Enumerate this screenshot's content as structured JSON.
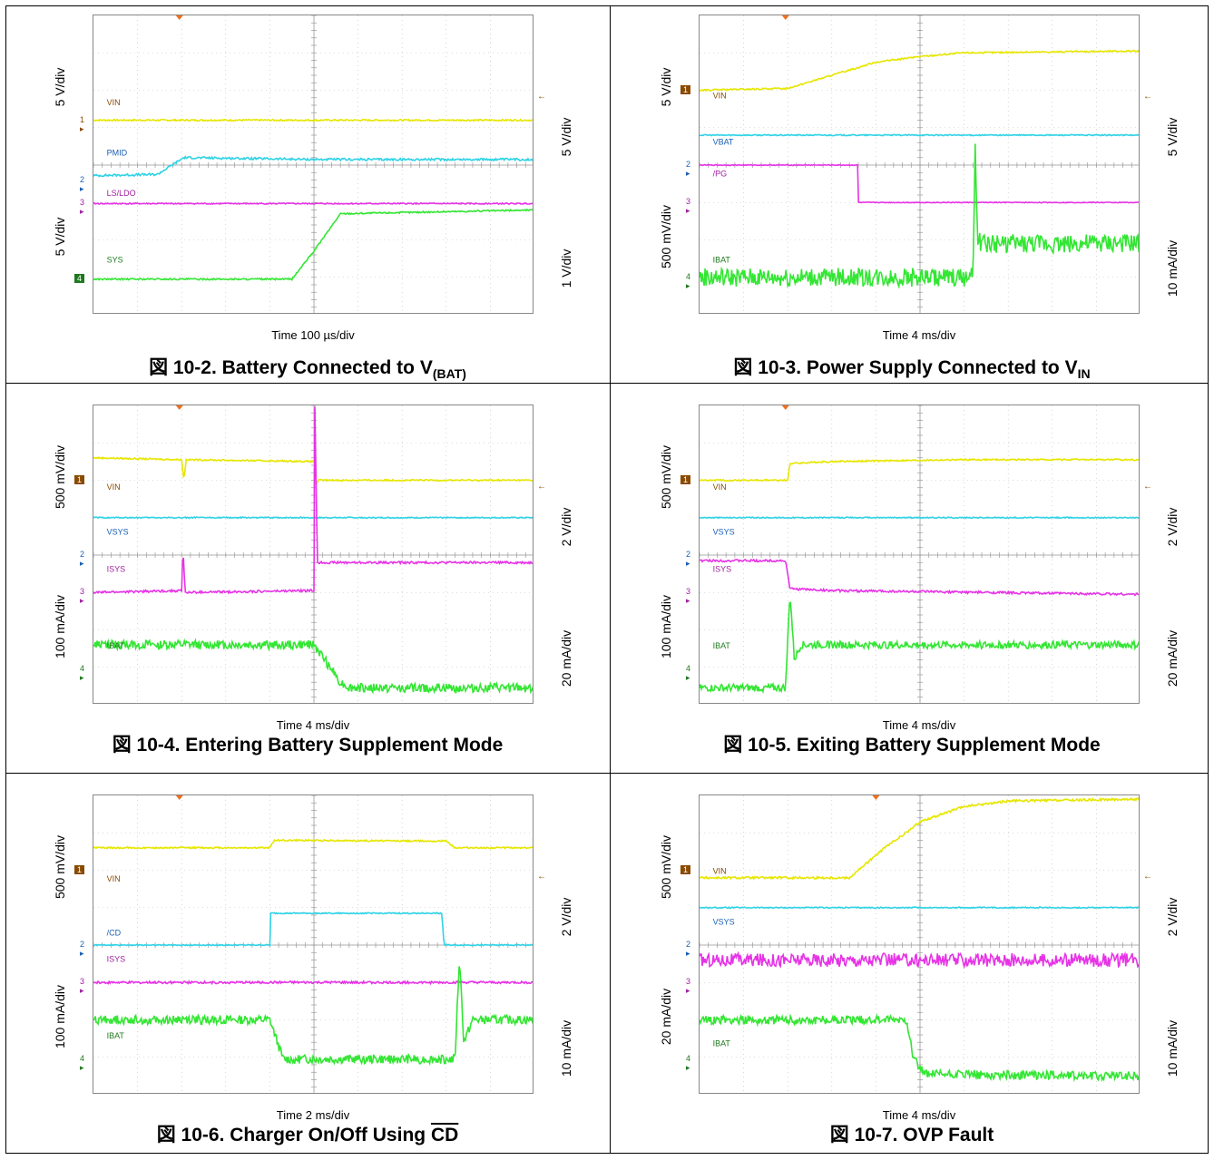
{
  "chart_data": [
    {
      "type": "line",
      "caption_prefix": "図 10-2. Battery Connected to V",
      "caption_sub": "(BAT)",
      "caption_suffix": "",
      "caption_overline": "",
      "timebase": "Time 100 µs/div",
      "left_scales": [
        "5 V/div",
        "5 V/div"
      ],
      "right_scales": [
        "5 V/div",
        "1 V/div"
      ],
      "channels": [
        {
          "num": "1",
          "name": "VIN",
          "color": "#e6e600",
          "marker_color": "#8a4a00",
          "points": [
            [
              0,
              5.2
            ],
            [
              10,
              5.2
            ]
          ],
          "noise": 0.02,
          "marker_y": 5.2,
          "label_y": 5.6
        },
        {
          "num": "2",
          "name": "PMID",
          "color": "#2ed2e6",
          "marker_color": "#1a5fb4",
          "points": [
            [
              0,
              3.72
            ],
            [
              1.45,
              3.75
            ],
            [
              2.05,
              4.2
            ],
            [
              5,
              4.15
            ],
            [
              10,
              4.15
            ]
          ],
          "noise": 0.03,
          "marker_y": 3.6,
          "label_y": 4.25
        },
        {
          "num": "3",
          "name": "LS/LDO",
          "color": "#e633e6",
          "marker_color": "#a020a0",
          "points": [
            [
              0,
              2.97
            ],
            [
              10,
              2.97
            ]
          ],
          "noise": 0.015,
          "marker_y": 2.97,
          "label_y": 3.18
        },
        {
          "num": "4",
          "name": "SYS",
          "color": "#33e633",
          "marker_color": "#1f7a1f",
          "points": [
            [
              0,
              0.95
            ],
            [
              4.5,
              0.95
            ],
            [
              5.0,
              1.7
            ],
            [
              5.6,
              2.7
            ],
            [
              10,
              2.8
            ]
          ],
          "noise": 0.02,
          "marker_y": 0.95,
          "label_y": 1.4,
          "marker_filled": true
        }
      ]
    },
    {
      "type": "line",
      "caption_prefix": "図 10-3. Power Supply Connected to V",
      "caption_sub": "IN",
      "caption_suffix": "",
      "caption_overline": "",
      "timebase": "Time 4 ms/div",
      "left_scales": [
        "5 V/div",
        "500 mV/div"
      ],
      "right_scales": [
        "5 V/div",
        "10 mA/div"
      ],
      "channels": [
        {
          "num": "1",
          "name": "VIN",
          "color": "#e6e600",
          "marker_color": "#8a4a00",
          "points": [
            [
              0,
              6.0
            ],
            [
              2.0,
              6.05
            ],
            [
              3,
              6.4
            ],
            [
              4,
              6.75
            ],
            [
              5,
              6.9
            ],
            [
              6,
              7.0
            ],
            [
              10,
              7.05
            ]
          ],
          "noise": 0.02,
          "marker_y": 6.0,
          "label_y": 5.78,
          "marker_filled": true
        },
        {
          "num": "2",
          "name": "VBAT",
          "color": "#2ed2e6",
          "marker_color": "#1a5fb4",
          "points": [
            [
              0,
              4.8
            ],
            [
              10,
              4.8
            ]
          ],
          "noise": 0.015,
          "marker_y": 4.0,
          "label_y": 4.55
        },
        {
          "num": "3",
          "name": "/PG",
          "color": "#e633e6",
          "marker_color": "#a020a0",
          "points": [
            [
              0,
              4.0
            ],
            [
              3.6,
              4.0
            ],
            [
              3.6,
              3.0
            ],
            [
              10,
              3.0
            ]
          ],
          "noise": 0.01,
          "marker_y": 3.0,
          "label_y": 3.7
        },
        {
          "num": "4",
          "name": "IBAT",
          "color": "#33e633",
          "marker_color": "#1f7a1f",
          "points": [
            [
              0,
              1.0
            ],
            [
              6.2,
              1.0
            ],
            [
              6.25,
              4.7
            ],
            [
              6.3,
              2.0
            ],
            [
              6.45,
              1.9
            ],
            [
              10,
              1.9
            ]
          ],
          "noise": 0.25,
          "marker_y": 1.0,
          "label_y": 1.4
        }
      ]
    },
    {
      "type": "line",
      "caption_prefix": "図 10-4. Entering Battery Supplement Mode",
      "caption_sub": "",
      "caption_suffix": "",
      "caption_overline": "",
      "timebase": "Time 4 ms/div",
      "left_scales": [
        "500 mV/div",
        "100 mA/div"
      ],
      "right_scales": [
        "2 V/div",
        "20 mA/div"
      ],
      "channels": [
        {
          "num": "1",
          "name": "VIN",
          "color": "#e6e600",
          "marker_color": "#8a4a00",
          "points": [
            [
              0,
              6.6
            ],
            [
              2.0,
              6.55
            ],
            [
              2.05,
              6.0
            ],
            [
              2.1,
              6.55
            ],
            [
              5.0,
              6.5
            ],
            [
              5.05,
              5.9
            ],
            [
              5.1,
              6.0
            ],
            [
              10,
              6.0
            ]
          ],
          "noise": 0.02,
          "marker_y": 6.0,
          "label_y": 5.75,
          "marker_filled": true
        },
        {
          "num": "2",
          "name": "VSYS",
          "color": "#2ed2e6",
          "marker_color": "#1a5fb4",
          "points": [
            [
              0,
              5.0
            ],
            [
              10,
              5.0
            ]
          ],
          "noise": 0.015,
          "marker_y": 4.0,
          "label_y": 4.55
        },
        {
          "num": "3",
          "name": "ISYS",
          "color": "#e633e6",
          "marker_color": "#a020a0",
          "points": [
            [
              0,
              3.0
            ],
            [
              2.0,
              3.05
            ],
            [
              2.03,
              4.2
            ],
            [
              2.08,
              3.0
            ],
            [
              5.0,
              3.05
            ],
            [
              5.02,
              8.0
            ],
            [
              5.08,
              3.8
            ],
            [
              10,
              3.8
            ]
          ],
          "noise": 0.03,
          "marker_y": 3.0,
          "label_y": 3.55
        },
        {
          "num": "4",
          "name": "IBAT",
          "color": "#33e633",
          "marker_color": "#1f7a1f",
          "points": [
            [
              0,
              1.6
            ],
            [
              5.0,
              1.6
            ],
            [
              5.3,
              1.1
            ],
            [
              5.6,
              0.6
            ],
            [
              5.8,
              0.45
            ],
            [
              10,
              0.45
            ]
          ],
          "noise": 0.12,
          "marker_y": 0.95,
          "label_y": 1.5
        }
      ]
    },
    {
      "type": "line",
      "caption_prefix": "図 10-5. Exiting Battery Supplement Mode",
      "caption_sub": "",
      "caption_suffix": "",
      "caption_overline": "",
      "timebase": "Time 4 ms/div",
      "left_scales": [
        "500 mV/div",
        "100 mA/div"
      ],
      "right_scales": [
        "2 V/div",
        "20 mA/div"
      ],
      "channels": [
        {
          "num": "1",
          "name": "VIN",
          "color": "#e6e600",
          "marker_color": "#8a4a00",
          "points": [
            [
              0,
              6.0
            ],
            [
              2.0,
              6.0
            ],
            [
              2.05,
              6.45
            ],
            [
              3,
              6.5
            ],
            [
              6,
              6.55
            ],
            [
              10,
              6.55
            ]
          ],
          "noise": 0.02,
          "marker_y": 6.0,
          "label_y": 5.75,
          "marker_filled": true
        },
        {
          "num": "2",
          "name": "VSYS",
          "color": "#2ed2e6",
          "marker_color": "#1a5fb4",
          "points": [
            [
              0,
              5.0
            ],
            [
              10,
              5.0
            ]
          ],
          "noise": 0.015,
          "marker_y": 4.0,
          "label_y": 4.55
        },
        {
          "num": "3",
          "name": "ISYS",
          "color": "#e633e6",
          "marker_color": "#a020a0",
          "points": [
            [
              0,
              3.85
            ],
            [
              1.95,
              3.85
            ],
            [
              2.05,
              3.1
            ],
            [
              3,
              3.05
            ],
            [
              10,
              2.95
            ]
          ],
          "noise": 0.03,
          "marker_y": 3.0,
          "label_y": 3.55
        },
        {
          "num": "4",
          "name": "IBAT",
          "color": "#33e633",
          "marker_color": "#1f7a1f",
          "points": [
            [
              0,
              0.45
            ],
            [
              1.95,
              0.45
            ],
            [
              2.05,
              3.0
            ],
            [
              2.15,
              1.2
            ],
            [
              2.3,
              1.6
            ],
            [
              10,
              1.6
            ]
          ],
          "noise": 0.1,
          "marker_y": 0.95,
          "label_y": 1.5
        }
      ]
    },
    {
      "type": "line",
      "caption_prefix": "図 10-6. Charger On/Off Using ",
      "caption_sub": "",
      "caption_suffix": "",
      "caption_overline": "CD",
      "timebase": "Time 2 ms/div",
      "left_scales": [
        "500 mV/div",
        "100 mA/div"
      ],
      "right_scales": [
        "2 V/div",
        "10 mA/div"
      ],
      "channels": [
        {
          "num": "1",
          "name": "VIN",
          "color": "#e6e600",
          "marker_color": "#8a4a00",
          "points": [
            [
              0,
              6.6
            ],
            [
              4.0,
              6.6
            ],
            [
              4.1,
              6.8
            ],
            [
              8.0,
              6.78
            ],
            [
              8.2,
              6.6
            ],
            [
              10,
              6.6
            ]
          ],
          "noise": 0.02,
          "marker_y": 6.0,
          "label_y": 5.7,
          "marker_filled": true
        },
        {
          "num": "2",
          "name": "/CD",
          "color": "#2ed2e6",
          "marker_color": "#1a5fb4",
          "points": [
            [
              0,
              4.0
            ],
            [
              4.0,
              4.0
            ],
            [
              4.02,
              4.85
            ],
            [
              7.9,
              4.85
            ],
            [
              7.95,
              4.0
            ],
            [
              10,
              4.0
            ]
          ],
          "noise": 0.015,
          "marker_y": 4.0,
          "label_y": 4.25
        },
        {
          "num": "3",
          "name": "ISYS",
          "color": "#e633e6",
          "marker_color": "#a020a0",
          "points": [
            [
              0,
              3.0
            ],
            [
              10,
              3.0
            ]
          ],
          "noise": 0.03,
          "marker_y": 3.0,
          "label_y": 3.55
        },
        {
          "num": "4",
          "name": "IBAT",
          "color": "#33e633",
          "marker_color": "#1f7a1f",
          "points": [
            [
              0,
              2.0
            ],
            [
              4.0,
              2.0
            ],
            [
              4.3,
              0.95
            ],
            [
              8.2,
              0.95
            ],
            [
              8.3,
              3.7
            ],
            [
              8.4,
              1.4
            ],
            [
              8.6,
              2.0
            ],
            [
              10,
              2.0
            ]
          ],
          "noise": 0.12,
          "marker_y": 0.95,
          "label_y": 1.5
        }
      ]
    },
    {
      "type": "line",
      "caption_prefix": "図 10-7. OVP Fault",
      "caption_sub": "",
      "caption_suffix": "",
      "caption_overline": "",
      "timebase": "Time 4 ms/div",
      "left_scales": [
        "500 mV/div",
        "20 mA/div"
      ],
      "right_scales": [
        "2 V/div",
        "10 mA/div"
      ],
      "channels": [
        {
          "num": "1",
          "name": "VIN",
          "color": "#e6e600",
          "marker_color": "#8a4a00",
          "points": [
            [
              0,
              5.8
            ],
            [
              3.4,
              5.8
            ],
            [
              4.2,
              6.6
            ],
            [
              4.8,
              7.1
            ],
            [
              5.0,
              7.3
            ],
            [
              6,
              7.7
            ],
            [
              7,
              7.85
            ],
            [
              10,
              7.9
            ]
          ],
          "noise": 0.03,
          "marker_y": 6.0,
          "label_y": 5.9,
          "marker_filled": true
        },
        {
          "num": "2",
          "name": "VSYS",
          "color": "#2ed2e6",
          "marker_color": "#1a5fb4",
          "points": [
            [
              0,
              5.0
            ],
            [
              10,
              5.0
            ]
          ],
          "noise": 0.015,
          "marker_y": 4.0,
          "label_y": 4.55
        },
        {
          "num": "3",
          "name": "",
          "color": "#e633e6",
          "marker_color": "#a020a0",
          "points": [
            [
              0,
              3.6
            ],
            [
              10,
              3.6
            ]
          ],
          "noise": 0.18,
          "marker_y": 3.0,
          "label_y": 3.3
        },
        {
          "num": "4",
          "name": "IBAT",
          "color": "#33e633",
          "marker_color": "#1f7a1f",
          "points": [
            [
              0,
              2.0
            ],
            [
              4.7,
              2.0
            ],
            [
              4.85,
              1.0
            ],
            [
              5.1,
              0.55
            ],
            [
              10,
              0.5
            ]
          ],
          "noise": 0.12,
          "marker_y": 0.95,
          "label_y": 1.3
        }
      ]
    }
  ]
}
